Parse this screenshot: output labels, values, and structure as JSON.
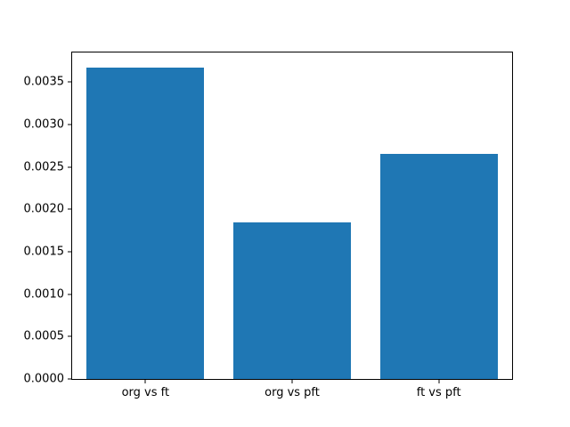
{
  "chart_data": {
    "type": "bar",
    "categories": [
      "org vs ft",
      "org vs pft",
      "ft vs pft"
    ],
    "values": [
      0.00367,
      0.00185,
      0.00265
    ],
    "title": "",
    "xlabel": "",
    "ylabel": "",
    "ylim": [
      0,
      0.00385
    ],
    "yticks": [
      0.0,
      0.0005,
      0.001,
      0.0015,
      0.002,
      0.0025,
      0.003,
      0.0035
    ],
    "ytick_labels": [
      "0.0000",
      "0.0005",
      "0.0010",
      "0.0015",
      "0.0020",
      "0.0025",
      "0.0030",
      "0.0035"
    ],
    "bar_width_fraction": 0.8,
    "grid": false,
    "legend_position": "none"
  },
  "colors": {
    "background": "#ffffff",
    "axis": "#000000",
    "bar": "#1f77b4"
  }
}
